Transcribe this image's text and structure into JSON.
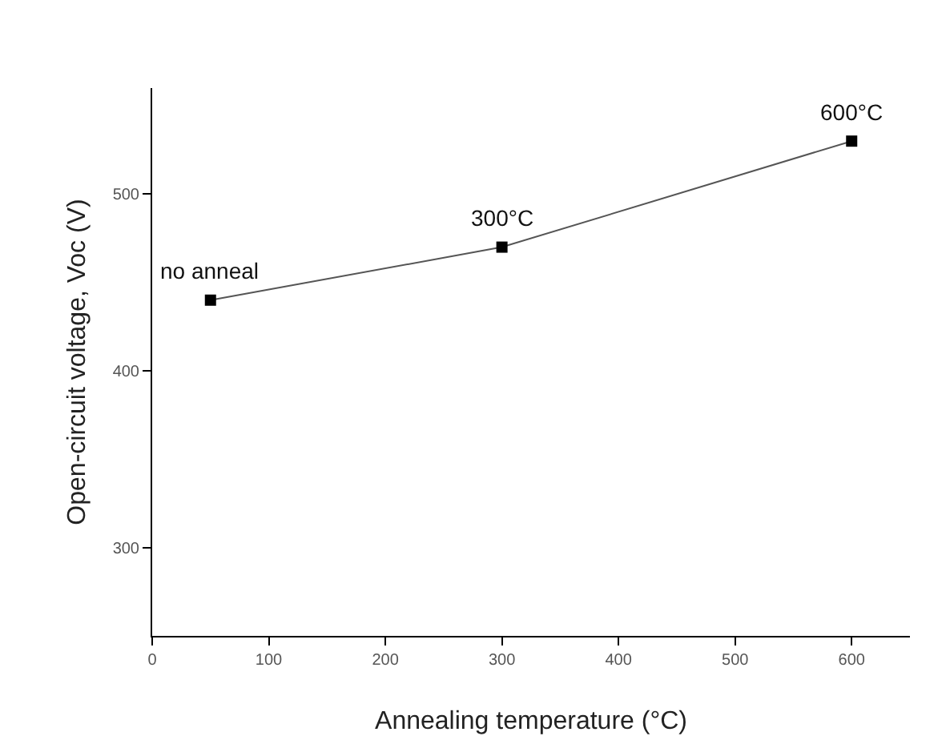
{
  "chart_data": {
    "type": "line",
    "xlabel": "Annealing temperature (°C)",
    "ylabel": "Open-circuit voltage, Voc (V)",
    "x": [
      50,
      300,
      600
    ],
    "series": [
      {
        "color": "#000000",
        "values": [
          440,
          470,
          530
        ]
      }
    ],
    "xlim": [
      0,
      650
    ],
    "xticks": [
      0,
      100,
      200,
      300,
      400,
      500,
      600
    ],
    "ylim": [
      250,
      560
    ],
    "yticks": [
      300,
      400,
      500
    ],
    "grid": false,
    "marker": "square",
    "line_style": "solid",
    "annotations": [
      {
        "text": "no anneal",
        "x": 50,
        "y": 440
      },
      {
        "text": "300°C",
        "x": 300,
        "y": 470
      },
      {
        "text": "600°C",
        "x": 600,
        "y": 530
      }
    ]
  }
}
